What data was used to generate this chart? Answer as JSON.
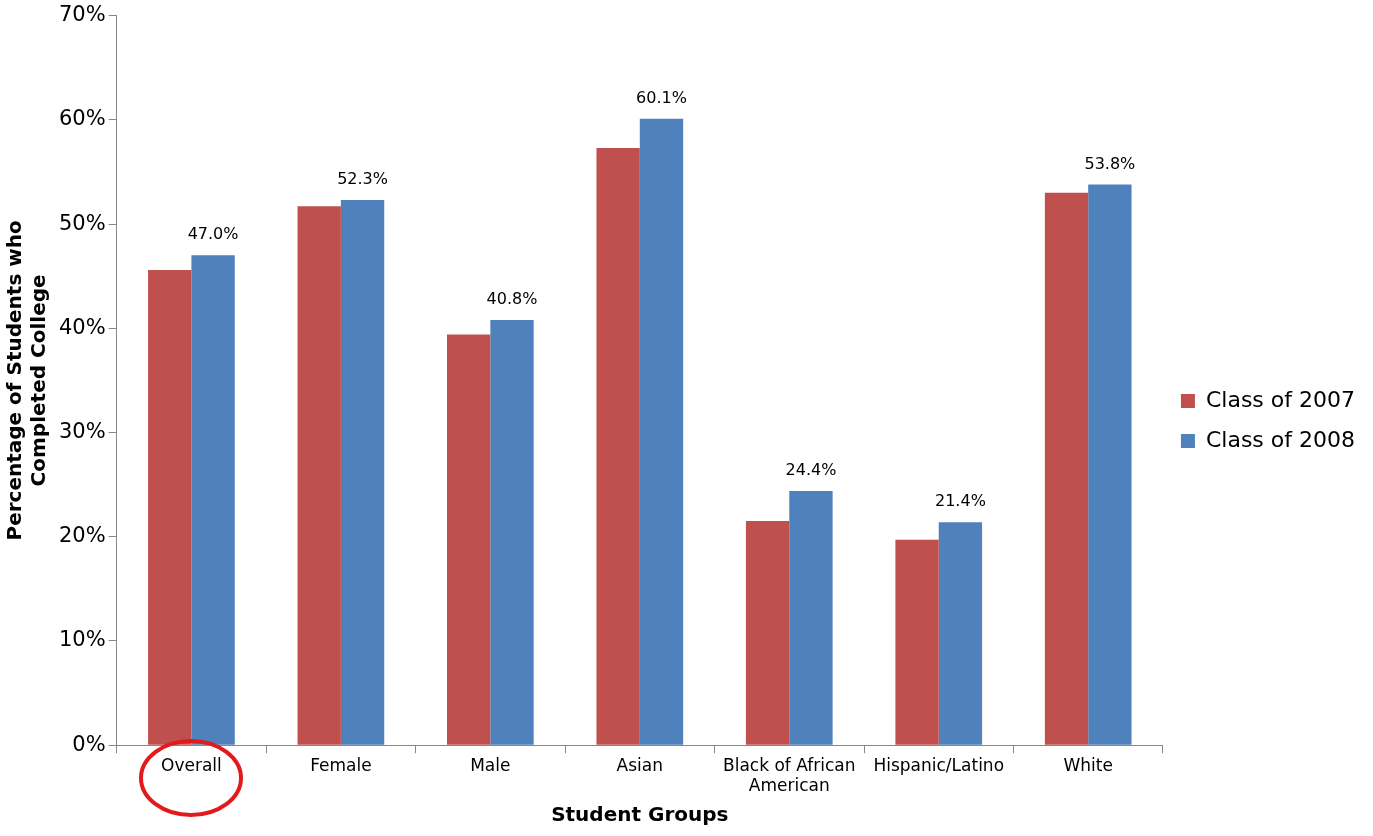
{
  "chart_data": {
    "type": "bar",
    "xlabel": "Student Groups",
    "ylabel": "Percentage of Students who Completed College",
    "categories": [
      "Overall",
      "Female",
      "Male",
      "Asian",
      "Black of African American",
      "Hispanic/Latino",
      "White"
    ],
    "series": [
      {
        "name": "Class of 2007",
        "color": "#c0504d",
        "values": [
          45.6,
          51.7,
          39.4,
          57.3,
          21.5,
          19.7,
          53.0
        ]
      },
      {
        "name": "Class of 2008",
        "color": "#4f81bd",
        "values": [
          47.0,
          52.3,
          40.8,
          60.1,
          24.4,
          21.4,
          53.8
        ],
        "value_labels": [
          "47.0%",
          "52.3%",
          "40.8%",
          "60.1%",
          "24.4%",
          "21.4%",
          "53.8%"
        ]
      }
    ],
    "ylim": [
      0,
      70
    ],
    "yticks": [
      {
        "value": 0,
        "label": "0%"
      },
      {
        "value": 10,
        "label": "10%"
      },
      {
        "value": 20,
        "label": "20%"
      },
      {
        "value": 30,
        "label": "30%"
      },
      {
        "value": 40,
        "label": "40%"
      },
      {
        "value": 50,
        "label": "50%"
      },
      {
        "value": 60,
        "label": "60%"
      },
      {
        "value": 70,
        "label": "70%"
      }
    ],
    "grid": false,
    "legend": "right"
  }
}
